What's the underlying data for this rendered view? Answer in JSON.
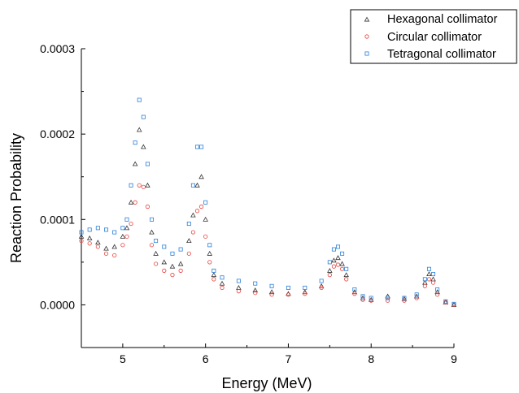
{
  "chart_data": {
    "type": "scatter",
    "title": "",
    "xlabel": "Energy (MeV)",
    "ylabel": "Reaction Probability",
    "xlim": [
      4.5,
      9.0
    ],
    "ylim": [
      -5e-05,
      0.0003
    ],
    "xticks": [
      5,
      6,
      7,
      8,
      9
    ],
    "xtick_labels": [
      "5",
      "6",
      "7",
      "8",
      "9"
    ],
    "yticks": [
      0.0,
      0.0001,
      0.0002,
      0.0003
    ],
    "ytick_labels": [
      "0.0000",
      "0.0001",
      "0.0002",
      "0.0003"
    ],
    "grid": false,
    "legend_position": "top-right",
    "series": [
      {
        "name": "Hexagonal collimator",
        "marker": "triangle",
        "color": "#333333",
        "points": [
          [
            4.5,
            8e-05
          ],
          [
            4.6,
            7.8e-05
          ],
          [
            4.7,
            7.3e-05
          ],
          [
            4.8,
            6.6e-05
          ],
          [
            4.9,
            6.8e-05
          ],
          [
            5.0,
            8e-05
          ],
          [
            5.05,
            9e-05
          ],
          [
            5.1,
            0.00012
          ],
          [
            5.15,
            0.000165
          ],
          [
            5.2,
            0.000205
          ],
          [
            5.25,
            0.000185
          ],
          [
            5.3,
            0.00014
          ],
          [
            5.35,
            8.5e-05
          ],
          [
            5.4,
            6e-05
          ],
          [
            5.5,
            5e-05
          ],
          [
            5.6,
            4.5e-05
          ],
          [
            5.7,
            4.8e-05
          ],
          [
            5.8,
            7.5e-05
          ],
          [
            5.85,
            0.000105
          ],
          [
            5.9,
            0.00014
          ],
          [
            5.95,
            0.00015
          ],
          [
            6.0,
            0.0001
          ],
          [
            6.05,
            6e-05
          ],
          [
            6.1,
            3.5e-05
          ],
          [
            6.2,
            2.5e-05
          ],
          [
            6.4,
            2e-05
          ],
          [
            6.6,
            1.7e-05
          ],
          [
            6.8,
            1.5e-05
          ],
          [
            7.0,
            1.3e-05
          ],
          [
            7.2,
            1.5e-05
          ],
          [
            7.4,
            2.2e-05
          ],
          [
            7.5,
            4e-05
          ],
          [
            7.55,
            5.2e-05
          ],
          [
            7.6,
            5.5e-05
          ],
          [
            7.65,
            4.8e-05
          ],
          [
            7.7,
            3.5e-05
          ],
          [
            7.8,
            1.5e-05
          ],
          [
            7.9,
            8e-06
          ],
          [
            8.0,
            6e-06
          ],
          [
            8.2,
            1e-05
          ],
          [
            8.4,
            7e-06
          ],
          [
            8.55,
            1e-05
          ],
          [
            8.65,
            2.6e-05
          ],
          [
            8.7,
            3.6e-05
          ],
          [
            8.75,
            3e-05
          ],
          [
            8.8,
            1.5e-05
          ],
          [
            8.9,
            3e-06
          ],
          [
            9.0,
            0.0
          ]
        ]
      },
      {
        "name": "Circular collimator",
        "marker": "circle",
        "color": "#e8413c",
        "points": [
          [
            4.5,
            7.5e-05
          ],
          [
            4.6,
            7.2e-05
          ],
          [
            4.7,
            6.8e-05
          ],
          [
            4.8,
            6e-05
          ],
          [
            4.9,
            5.8e-05
          ],
          [
            5.0,
            7e-05
          ],
          [
            5.05,
            8e-05
          ],
          [
            5.1,
            9.5e-05
          ],
          [
            5.15,
            0.00012
          ],
          [
            5.2,
            0.00014
          ],
          [
            5.25,
            0.000138
          ],
          [
            5.3,
            0.000115
          ],
          [
            5.35,
            7e-05
          ],
          [
            5.4,
            4.8e-05
          ],
          [
            5.5,
            4e-05
          ],
          [
            5.6,
            3.5e-05
          ],
          [
            5.7,
            4e-05
          ],
          [
            5.8,
            6e-05
          ],
          [
            5.85,
            8.5e-05
          ],
          [
            5.9,
            0.00011
          ],
          [
            5.95,
            0.000115
          ],
          [
            6.0,
            8e-05
          ],
          [
            6.05,
            5e-05
          ],
          [
            6.1,
            3e-05
          ],
          [
            6.2,
            2e-05
          ],
          [
            6.4,
            1.6e-05
          ],
          [
            6.6,
            1.4e-05
          ],
          [
            6.8,
            1.2e-05
          ],
          [
            7.0,
            1.2e-05
          ],
          [
            7.2,
            1.3e-05
          ],
          [
            7.4,
            2e-05
          ],
          [
            7.5,
            3.5e-05
          ],
          [
            7.55,
            4.5e-05
          ],
          [
            7.6,
            4.7e-05
          ],
          [
            7.65,
            4.2e-05
          ],
          [
            7.7,
            3e-05
          ],
          [
            7.8,
            1.3e-05
          ],
          [
            7.9,
            6e-06
          ],
          [
            8.0,
            5e-06
          ],
          [
            8.2,
            5e-06
          ],
          [
            8.4,
            5e-06
          ],
          [
            8.55,
            8e-06
          ],
          [
            8.65,
            2.2e-05
          ],
          [
            8.7,
            3e-05
          ],
          [
            8.75,
            2.6e-05
          ],
          [
            8.8,
            1.2e-05
          ],
          [
            8.9,
            3e-06
          ],
          [
            9.0,
            0.0
          ]
        ]
      },
      {
        "name": "Tetragonal collimator",
        "marker": "square",
        "color": "#2a7fd8",
        "points": [
          [
            4.5,
            8.5e-05
          ],
          [
            4.6,
            8.8e-05
          ],
          [
            4.7,
            9e-05
          ],
          [
            4.8,
            8.8e-05
          ],
          [
            4.9,
            8.5e-05
          ],
          [
            5.0,
            9e-05
          ],
          [
            5.05,
            0.0001
          ],
          [
            5.1,
            0.00014
          ],
          [
            5.15,
            0.00019
          ],
          [
            5.2,
            0.00024
          ],
          [
            5.25,
            0.00022
          ],
          [
            5.3,
            0.000165
          ],
          [
            5.35,
            0.0001
          ],
          [
            5.4,
            7.5e-05
          ],
          [
            5.5,
            6.8e-05
          ],
          [
            5.6,
            6e-05
          ],
          [
            5.7,
            6.5e-05
          ],
          [
            5.8,
            9.5e-05
          ],
          [
            5.85,
            0.00014
          ],
          [
            5.9,
            0.000185
          ],
          [
            5.95,
            0.000185
          ],
          [
            6.0,
            0.00012
          ],
          [
            6.05,
            7e-05
          ],
          [
            6.1,
            4e-05
          ],
          [
            6.2,
            3.2e-05
          ],
          [
            6.4,
            2.8e-05
          ],
          [
            6.6,
            2.5e-05
          ],
          [
            6.8,
            2.2e-05
          ],
          [
            7.0,
            2e-05
          ],
          [
            7.2,
            2e-05
          ],
          [
            7.4,
            2.8e-05
          ],
          [
            7.5,
            5e-05
          ],
          [
            7.55,
            6.5e-05
          ],
          [
            7.6,
            6.8e-05
          ],
          [
            7.65,
            6e-05
          ],
          [
            7.7,
            4.2e-05
          ],
          [
            7.8,
            1.8e-05
          ],
          [
            7.9,
            1e-05
          ],
          [
            8.0,
            8e-06
          ],
          [
            8.2,
            8e-06
          ],
          [
            8.4,
            8e-06
          ],
          [
            8.55,
            1.2e-05
          ],
          [
            8.65,
            3e-05
          ],
          [
            8.7,
            4.2e-05
          ],
          [
            8.75,
            3.6e-05
          ],
          [
            8.8,
            1.8e-05
          ],
          [
            8.9,
            4e-06
          ],
          [
            9.0,
            1e-06
          ]
        ]
      }
    ]
  }
}
